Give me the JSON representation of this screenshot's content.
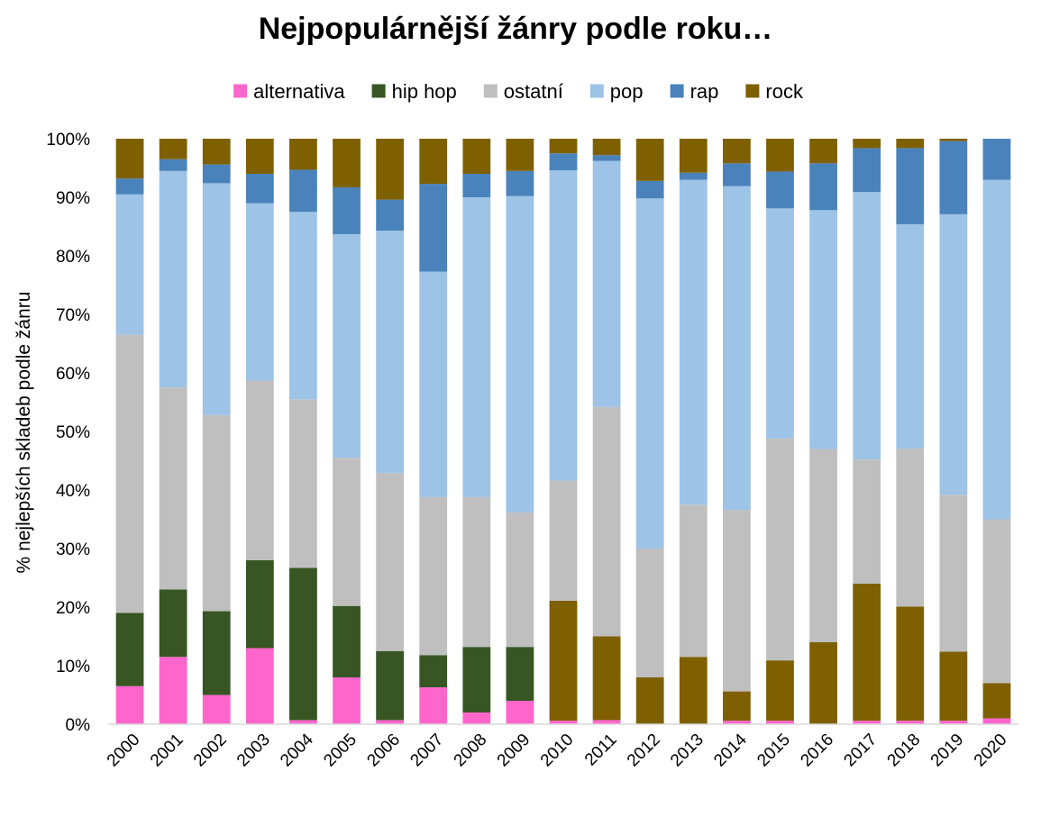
{
  "chart_data": {
    "type": "bar",
    "stacked": true,
    "title": "Nejpopulárnější žánry podle roku…",
    "xlabel": "",
    "ylabel": "% nejlepších skladeb podle žánru",
    "ylim": [
      0,
      100
    ],
    "yticks": [
      "0%",
      "10%",
      "20%",
      "30%",
      "40%",
      "50%",
      "60%",
      "70%",
      "80%",
      "90%",
      "100%"
    ],
    "grid": false,
    "legend_position": "top",
    "categories": [
      "2000",
      "2001",
      "2002",
      "2003",
      "2004",
      "2005",
      "2006",
      "2007",
      "2008",
      "2009",
      "2010",
      "2011",
      "2012",
      "2013",
      "2014",
      "2015",
      "2016",
      "2017",
      "2018",
      "2019",
      "2020"
    ],
    "series": [
      {
        "name": "alternativa",
        "color": "#ff66cc",
        "values": [
          6.5,
          11.5,
          5,
          13,
          0.7,
          8,
          0.7,
          6.3,
          2,
          4,
          0.6,
          0.7,
          0,
          0,
          0.6,
          0.6,
          0,
          0.6,
          0.6,
          0.6,
          1
        ]
      },
      {
        "name": "hip hop",
        "color": "#375623",
        "values": [
          12.5,
          11.5,
          14.3,
          15,
          26,
          12.2,
          11.8,
          5.5,
          11.2,
          9.2,
          0,
          0,
          0,
          0,
          0,
          0,
          0,
          0,
          0,
          0,
          0
        ]
      },
      {
        "name": "rock",
        "color": "#7f6000",
        "part": "lower",
        "values": [
          0,
          0,
          0,
          0,
          0,
          0,
          0,
          0,
          0,
          0,
          20.5,
          14.3,
          8,
          11.5,
          5,
          10.3,
          14,
          23.4,
          19.5,
          11.8,
          6
        ]
      },
      {
        "name": "ostatní",
        "color": "#bfbfbf",
        "values": [
          47.5,
          34.5,
          33.5,
          30.7,
          28.8,
          25.3,
          30.4,
          27,
          25.6,
          23,
          20.5,
          39.2,
          22,
          26,
          31,
          37.9,
          33,
          21.2,
          27,
          26.8,
          28
        ]
      },
      {
        "name": "pop",
        "color": "#9dc3e6",
        "values": [
          24,
          37,
          39.6,
          30.3,
          32,
          38.2,
          41.4,
          38.5,
          51.2,
          54,
          53,
          42,
          59.8,
          55.5,
          55.3,
          39.3,
          40.8,
          45.7,
          38.3,
          47.9,
          58
        ]
      },
      {
        "name": "rap",
        "color": "#4a83bb",
        "values": [
          2.7,
          2,
          3.2,
          5,
          7.2,
          8,
          5.3,
          15,
          4,
          4.3,
          2.9,
          1,
          3,
          1.2,
          3.9,
          6.3,
          8,
          7.5,
          13,
          12.5,
          7
        ]
      },
      {
        "name": "rock",
        "color": "#7f6000",
        "part": "upper",
        "values": [
          6.8,
          3.5,
          4.4,
          6,
          5.3,
          8.3,
          10.4,
          7.7,
          6,
          5.5,
          2.5,
          2.8,
          7.2,
          5.8,
          4.2,
          5.6,
          4.2,
          1.6,
          1.6,
          0.4,
          0
        ]
      }
    ],
    "legend": [
      {
        "label": "alternativa",
        "color": "#ff66cc"
      },
      {
        "label": "hip hop",
        "color": "#375623"
      },
      {
        "label": "ostatní",
        "color": "#bfbfbf"
      },
      {
        "label": "pop",
        "color": "#9dc3e6"
      },
      {
        "label": "rap",
        "color": "#4a83bb"
      },
      {
        "label": "rock",
        "color": "#7f6000"
      }
    ]
  }
}
